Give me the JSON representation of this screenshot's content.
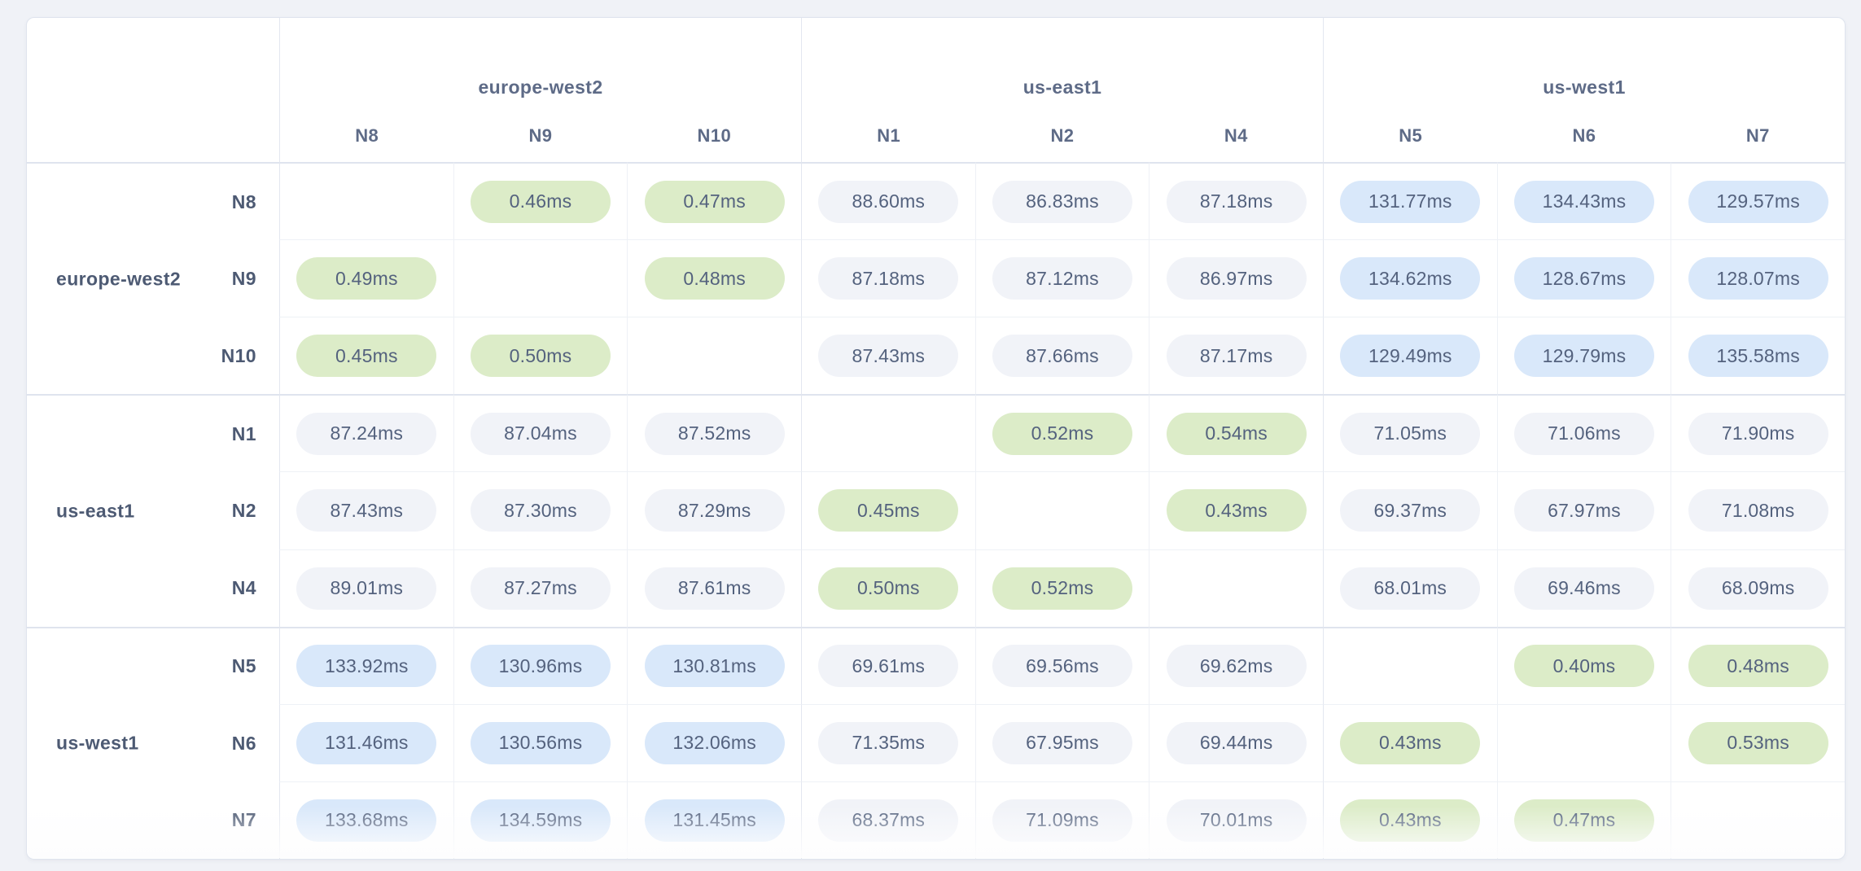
{
  "colors": {
    "page_bg": "#f0f2f7",
    "card_bg": "#ffffff",
    "b_strong": "#dfe4ee",
    "b_med": "#e3e7f0",
    "b_light": "#eef1f6",
    "t_header": "#5e6b87",
    "t_label": "#4d5a73",
    "t_pill": "#54627e",
    "pill_local": "#dcecc8",
    "pill_mid": "#f1f3f8",
    "pill_far": "#d9e8fa"
  },
  "matrix": {
    "unit": "ms",
    "groups": [
      {
        "name": "europe-west2",
        "nodes": [
          "N8",
          "N9",
          "N10"
        ]
      },
      {
        "name": "us-east1",
        "nodes": [
          "N1",
          "N2",
          "N4"
        ]
      },
      {
        "name": "us-west1",
        "nodes": [
          "N5",
          "N6",
          "N7"
        ]
      }
    ],
    "legend": {
      "local_max_ms": 1,
      "far_min_ms": 100
    },
    "cells": [
      [
        "",
        "0.46ms",
        "0.47ms",
        "88.60ms",
        "86.83ms",
        "87.18ms",
        "131.77ms",
        "134.43ms",
        "129.57ms"
      ],
      [
        "0.49ms",
        "",
        "0.48ms",
        "87.18ms",
        "87.12ms",
        "86.97ms",
        "134.62ms",
        "128.67ms",
        "128.07ms"
      ],
      [
        "0.45ms",
        "0.50ms",
        "",
        "87.43ms",
        "87.66ms",
        "87.17ms",
        "129.49ms",
        "129.79ms",
        "135.58ms"
      ],
      [
        "87.24ms",
        "87.04ms",
        "87.52ms",
        "",
        "0.52ms",
        "0.54ms",
        "71.05ms",
        "71.06ms",
        "71.90ms"
      ],
      [
        "87.43ms",
        "87.30ms",
        "87.29ms",
        "0.45ms",
        "",
        "0.43ms",
        "69.37ms",
        "67.97ms",
        "71.08ms"
      ],
      [
        "89.01ms",
        "87.27ms",
        "87.61ms",
        "0.50ms",
        "0.52ms",
        "",
        "68.01ms",
        "69.46ms",
        "68.09ms"
      ],
      [
        "133.92ms",
        "130.96ms",
        "130.81ms",
        "69.61ms",
        "69.56ms",
        "69.62ms",
        "",
        "0.40ms",
        "0.48ms"
      ],
      [
        "131.46ms",
        "130.56ms",
        "132.06ms",
        "71.35ms",
        "67.95ms",
        "69.44ms",
        "0.43ms",
        "",
        "0.53ms"
      ],
      [
        "133.68ms",
        "134.59ms",
        "131.45ms",
        "68.37ms",
        "71.09ms",
        "70.01ms",
        "0.43ms",
        "0.47ms",
        ""
      ]
    ]
  },
  "chart_data": {
    "type": "heatmap",
    "unit": "ms",
    "column_groups": [
      {
        "name": "europe-west2",
        "nodes": [
          "N8",
          "N9",
          "N10"
        ]
      },
      {
        "name": "us-east1",
        "nodes": [
          "N1",
          "N2",
          "N4"
        ]
      },
      {
        "name": "us-west1",
        "nodes": [
          "N5",
          "N6",
          "N7"
        ]
      }
    ],
    "rows": [
      "N8",
      "N9",
      "N10",
      "N1",
      "N2",
      "N4",
      "N5",
      "N6",
      "N7"
    ],
    "columns": [
      "N8",
      "N9",
      "N10",
      "N1",
      "N2",
      "N4",
      "N5",
      "N6",
      "N7"
    ],
    "values_ms": [
      [
        null,
        0.46,
        0.47,
        88.6,
        86.83,
        87.18,
        131.77,
        134.43,
        129.57
      ],
      [
        0.49,
        null,
        0.48,
        87.18,
        87.12,
        86.97,
        134.62,
        128.67,
        128.07
      ],
      [
        0.45,
        0.5,
        null,
        87.43,
        87.66,
        87.17,
        129.49,
        129.79,
        135.58
      ],
      [
        87.24,
        87.04,
        87.52,
        null,
        0.52,
        0.54,
        71.05,
        71.06,
        71.9
      ],
      [
        87.43,
        87.3,
        87.29,
        0.45,
        null,
        0.43,
        69.37,
        67.97,
        71.08
      ],
      [
        89.01,
        87.27,
        87.61,
        0.5,
        0.52,
        null,
        68.01,
        69.46,
        68.09
      ],
      [
        133.92,
        130.96,
        130.81,
        69.61,
        69.56,
        69.62,
        null,
        0.4,
        0.48
      ],
      [
        131.46,
        130.56,
        132.06,
        71.35,
        67.95,
        69.44,
        0.43,
        null,
        0.53
      ],
      [
        133.68,
        134.59,
        131.45,
        68.37,
        71.09,
        70.01,
        0.43,
        0.47,
        null
      ]
    ],
    "color_coding": {
      "local": "green pill, same-region latency < 1ms",
      "mid": "gray pill, mid-range latency",
      "far": "blue pill, latency > 100ms"
    },
    "legend_position": "none",
    "grid": true
  }
}
